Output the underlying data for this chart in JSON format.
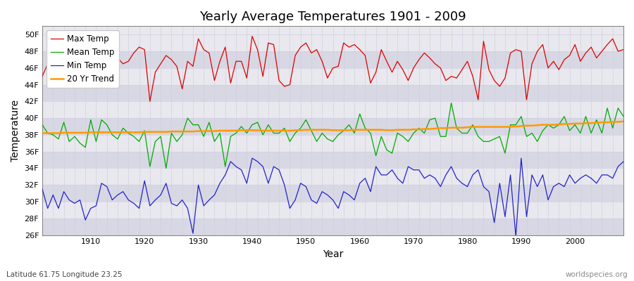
{
  "title": "Yearly Average Temperatures 1901 - 2009",
  "xlabel": "Year",
  "ylabel": "Temperature",
  "bottom_left": "Latitude 61.75 Longitude 23.25",
  "bottom_right": "worldspecies.org",
  "years": [
    1901,
    1902,
    1903,
    1904,
    1905,
    1906,
    1907,
    1908,
    1909,
    1910,
    1911,
    1912,
    1913,
    1914,
    1915,
    1916,
    1917,
    1918,
    1919,
    1920,
    1921,
    1922,
    1923,
    1924,
    1925,
    1926,
    1927,
    1928,
    1929,
    1930,
    1931,
    1932,
    1933,
    1934,
    1935,
    1936,
    1937,
    1938,
    1939,
    1940,
    1941,
    1942,
    1943,
    1944,
    1945,
    1946,
    1947,
    1948,
    1949,
    1950,
    1951,
    1952,
    1953,
    1954,
    1955,
    1956,
    1957,
    1958,
    1959,
    1960,
    1961,
    1962,
    1963,
    1964,
    1965,
    1966,
    1967,
    1968,
    1969,
    1970,
    1971,
    1972,
    1973,
    1974,
    1975,
    1976,
    1977,
    1978,
    1979,
    1980,
    1981,
    1982,
    1983,
    1984,
    1985,
    1986,
    1987,
    1988,
    1989,
    1990,
    1991,
    1992,
    1993,
    1994,
    1995,
    1996,
    1997,
    1998,
    1999,
    2000,
    2001,
    2002,
    2003,
    2004,
    2005,
    2006,
    2007,
    2008,
    2009
  ],
  "max_temp": [
    45.0,
    46.5,
    46.2,
    45.5,
    45.8,
    45.0,
    44.8,
    45.5,
    44.5,
    44.2,
    46.0,
    47.2,
    48.0,
    47.5,
    47.2,
    46.5,
    46.8,
    47.8,
    48.5,
    48.2,
    42.0,
    45.5,
    46.5,
    47.5,
    47.0,
    46.2,
    43.5,
    46.8,
    46.2,
    49.5,
    48.2,
    47.8,
    44.5,
    46.8,
    48.5,
    44.2,
    46.8,
    46.8,
    44.8,
    49.8,
    48.2,
    45.0,
    49.0,
    48.8,
    44.5,
    43.8,
    44.0,
    47.5,
    48.5,
    49.0,
    47.8,
    48.2,
    46.8,
    44.8,
    46.0,
    46.2,
    49.0,
    48.5,
    48.8,
    48.2,
    47.5,
    44.2,
    45.5,
    48.2,
    46.8,
    45.5,
    46.8,
    45.8,
    44.5,
    46.0,
    47.0,
    47.8,
    47.2,
    46.5,
    46.0,
    44.5,
    45.0,
    44.8,
    45.8,
    46.8,
    45.0,
    42.2,
    49.2,
    45.8,
    44.5,
    43.8,
    44.8,
    47.8,
    48.2,
    48.0,
    42.2,
    46.5,
    48.0,
    48.8,
    46.0,
    46.8,
    45.8,
    47.0,
    47.5,
    48.8,
    46.8,
    47.8,
    48.5,
    47.2,
    48.0,
    48.8,
    49.5,
    48.0,
    48.2
  ],
  "mean_temp": [
    39.2,
    38.2,
    38.0,
    37.5,
    39.5,
    37.2,
    37.8,
    37.0,
    36.5,
    39.8,
    37.2,
    39.8,
    39.2,
    38.0,
    37.5,
    38.8,
    38.2,
    37.8,
    37.2,
    38.5,
    34.2,
    37.2,
    37.8,
    34.0,
    38.2,
    37.2,
    38.0,
    40.0,
    39.2,
    39.2,
    37.8,
    39.5,
    37.2,
    38.2,
    34.2,
    37.8,
    38.2,
    39.0,
    38.2,
    39.2,
    39.5,
    38.0,
    39.2,
    38.2,
    38.2,
    38.8,
    37.2,
    38.2,
    38.8,
    39.8,
    38.5,
    37.2,
    38.2,
    37.5,
    37.2,
    38.0,
    38.5,
    39.2,
    38.2,
    40.5,
    38.8,
    38.2,
    35.5,
    37.8,
    36.2,
    35.8,
    38.2,
    37.8,
    37.2,
    38.2,
    38.8,
    38.2,
    39.8,
    40.0,
    37.8,
    37.8,
    41.8,
    38.8,
    38.2,
    38.2,
    39.2,
    37.8,
    37.2,
    37.2,
    37.5,
    37.8,
    35.8,
    39.2,
    39.2,
    40.2,
    37.8,
    38.2,
    37.2,
    38.5,
    39.2,
    38.8,
    39.2,
    40.2,
    38.5,
    39.2,
    38.2,
    40.2,
    38.2,
    39.8,
    38.2,
    41.2,
    38.8,
    41.2,
    40.2
  ],
  "min_temp": [
    31.5,
    29.2,
    30.8,
    29.2,
    31.2,
    30.2,
    29.8,
    30.2,
    27.8,
    29.2,
    29.5,
    32.2,
    31.8,
    30.2,
    30.8,
    31.2,
    30.2,
    29.8,
    29.2,
    32.5,
    29.5,
    30.2,
    30.8,
    32.2,
    29.8,
    29.5,
    30.2,
    29.2,
    26.2,
    32.0,
    29.5,
    30.2,
    30.8,
    32.2,
    33.2,
    34.8,
    34.2,
    33.8,
    32.2,
    35.2,
    34.8,
    34.2,
    32.2,
    34.2,
    33.8,
    32.0,
    29.2,
    30.2,
    32.2,
    31.8,
    30.2,
    29.8,
    31.2,
    30.8,
    30.2,
    29.2,
    31.2,
    30.8,
    30.2,
    32.2,
    32.8,
    31.2,
    34.2,
    33.2,
    33.2,
    33.8,
    32.8,
    32.2,
    34.2,
    33.8,
    33.8,
    32.8,
    33.2,
    32.8,
    31.8,
    33.2,
    34.2,
    32.8,
    32.2,
    31.8,
    33.2,
    33.8,
    31.8,
    31.2,
    27.5,
    32.2,
    28.2,
    33.2,
    25.8,
    35.2,
    28.2,
    33.2,
    31.8,
    33.2,
    30.2,
    31.8,
    32.2,
    31.8,
    33.2,
    32.2,
    32.8,
    33.2,
    32.8,
    32.2,
    33.2,
    33.2,
    32.8,
    34.2,
    34.8
  ],
  "trend": [
    38.2,
    38.2,
    38.2,
    38.2,
    38.25,
    38.25,
    38.25,
    38.25,
    38.25,
    38.3,
    38.3,
    38.3,
    38.3,
    38.3,
    38.3,
    38.3,
    38.3,
    38.3,
    38.3,
    38.35,
    38.35,
    38.35,
    38.35,
    38.35,
    38.4,
    38.4,
    38.4,
    38.4,
    38.4,
    38.45,
    38.45,
    38.45,
    38.45,
    38.5,
    38.5,
    38.5,
    38.5,
    38.55,
    38.55,
    38.55,
    38.55,
    38.5,
    38.5,
    38.5,
    38.5,
    38.5,
    38.5,
    38.55,
    38.55,
    38.6,
    38.6,
    38.6,
    38.6,
    38.6,
    38.55,
    38.55,
    38.55,
    38.55,
    38.6,
    38.6,
    38.6,
    38.6,
    38.6,
    38.6,
    38.55,
    38.55,
    38.6,
    38.6,
    38.6,
    38.65,
    38.65,
    38.7,
    38.7,
    38.75,
    38.8,
    38.8,
    38.85,
    38.85,
    38.85,
    38.9,
    38.95,
    38.95,
    38.95,
    38.95,
    38.95,
    38.95,
    38.95,
    38.95,
    39.0,
    39.05,
    39.1,
    39.1,
    39.15,
    39.2,
    39.2,
    39.2,
    39.25,
    39.3,
    39.3,
    39.35,
    39.35,
    39.4,
    39.4,
    39.45,
    39.5,
    39.5,
    39.55,
    39.55,
    39.6
  ],
  "max_color": "#dd0000",
  "mean_color": "#00aa00",
  "min_color": "#2222cc",
  "trend_color": "#ff9900",
  "fig_bg": "#ffffff",
  "plot_bg": "#e8e8ee",
  "band_light": "#e8e8ee",
  "band_dark": "#d8d8e4",
  "grid_color": "#ccccdd",
  "ylim": [
    26,
    51
  ],
  "yticks": [
    26,
    28,
    30,
    32,
    34,
    36,
    38,
    40,
    42,
    44,
    46,
    48,
    50
  ],
  "xlim": [
    1901,
    2009
  ],
  "xticks": [
    1910,
    1920,
    1930,
    1940,
    1950,
    1960,
    1970,
    1980,
    1990,
    2000
  ]
}
